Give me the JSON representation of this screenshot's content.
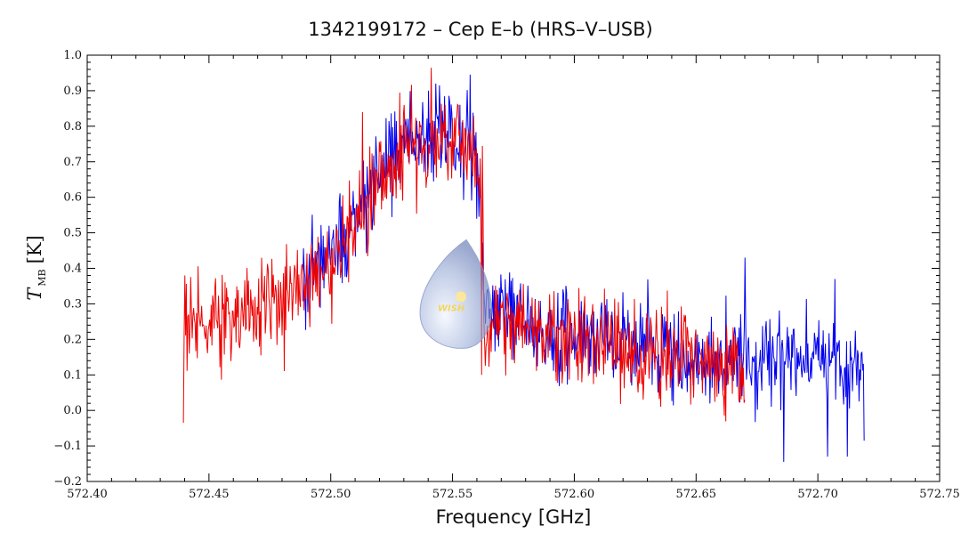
{
  "chart_data": {
    "type": "line",
    "title": "1342199172 – Cep E–b (HRS–V–USB)",
    "xlabel": "Frequency [GHz]",
    "ylabel": {
      "symbol": "T",
      "subscript": "MB",
      "unit": "[K]"
    },
    "xlim": [
      572.4,
      572.75
    ],
    "ylim": [
      -0.2,
      1.0
    ],
    "xticks": [
      {
        "value": 572.4,
        "label": "572.40"
      },
      {
        "value": 572.45,
        "label": "572.45"
      },
      {
        "value": 572.5,
        "label": "572.50"
      },
      {
        "value": 572.55,
        "label": "572.55"
      },
      {
        "value": 572.6,
        "label": "572.60"
      },
      {
        "value": 572.65,
        "label": "572.65"
      },
      {
        "value": 572.7,
        "label": "572.70"
      },
      {
        "value": 572.75,
        "label": "572.75"
      }
    ],
    "yticks": [
      {
        "value": -0.2,
        "label": "−0.2"
      },
      {
        "value": -0.1,
        "label": "−0.1"
      },
      {
        "value": 0.0,
        "label": "0.0"
      },
      {
        "value": 0.1,
        "label": "0.1"
      },
      {
        "value": 0.2,
        "label": "0.2"
      },
      {
        "value": 0.3,
        "label": "0.3"
      },
      {
        "value": 0.4,
        "label": "0.4"
      },
      {
        "value": 0.5,
        "label": "0.5"
      },
      {
        "value": 0.6,
        "label": "0.6"
      },
      {
        "value": 0.7,
        "label": "0.7"
      },
      {
        "value": 0.8,
        "label": "0.8"
      },
      {
        "value": 0.9,
        "label": "0.9"
      },
      {
        "value": 1.0,
        "label": "1.0"
      }
    ],
    "grid": false,
    "series": [
      {
        "color": "#0000ee",
        "x_range": [
          572.4885,
          572.719
        ],
        "profile": [
          [
            572.4885,
            0.4
          ],
          [
            572.5,
            0.44
          ],
          [
            572.51,
            0.55
          ],
          [
            572.52,
            0.66
          ],
          [
            572.53,
            0.75
          ],
          [
            572.54,
            0.79
          ],
          [
            572.55,
            0.77
          ],
          [
            572.555,
            0.76
          ],
          [
            572.56,
            0.7
          ],
          [
            572.5615,
            0.62
          ],
          [
            572.5625,
            0.3
          ],
          [
            572.57,
            0.3
          ],
          [
            572.58,
            0.25
          ],
          [
            572.6,
            0.2
          ],
          [
            572.65,
            0.15
          ],
          [
            572.719,
            0.14
          ]
        ],
        "noise_sigma": 0.065,
        "spikes": [
          {
            "x": 572.54,
            "y": 0.9
          },
          {
            "x": 572.543,
            "y": 0.92
          },
          {
            "x": 572.67,
            "y": 0.43
          },
          {
            "x": 572.707,
            "y": 0.37
          },
          {
            "x": 572.686,
            "y": -0.145
          },
          {
            "x": 572.704,
            "y": -0.13
          },
          {
            "x": 572.712,
            "y": -0.13
          },
          {
            "x": 572.719,
            "y": -0.085
          }
        ]
      },
      {
        "color": "#ee0000",
        "x_range": [
          572.4395,
          572.67
        ],
        "profile": [
          [
            572.4395,
            0.25
          ],
          [
            572.45,
            0.26
          ],
          [
            572.47,
            0.28
          ],
          [
            572.49,
            0.36
          ],
          [
            572.5,
            0.42
          ],
          [
            572.51,
            0.52
          ],
          [
            572.52,
            0.64
          ],
          [
            572.53,
            0.72
          ],
          [
            572.54,
            0.77
          ],
          [
            572.55,
            0.75
          ],
          [
            572.555,
            0.74
          ],
          [
            572.56,
            0.7
          ],
          [
            572.5625,
            0.62
          ],
          [
            572.563,
            0.2
          ],
          [
            572.57,
            0.27
          ],
          [
            572.58,
            0.24
          ],
          [
            572.6,
            0.19
          ],
          [
            572.65,
            0.14
          ],
          [
            572.67,
            0.13
          ]
        ],
        "noise_sigma": 0.065,
        "spikes": [
          {
            "x": 572.4395,
            "y": -0.035
          },
          {
            "x": 572.44,
            "y": 0.38
          },
          {
            "x": 572.53,
            "y": 0.86
          },
          {
            "x": 572.547,
            "y": 0.86
          },
          {
            "x": 572.513,
            "y": 0.84
          },
          {
            "x": 572.562,
            "y": 0.1
          }
        ]
      }
    ],
    "watermark": {
      "text": "WISH",
      "x": 572.552,
      "y": 0.3
    }
  }
}
